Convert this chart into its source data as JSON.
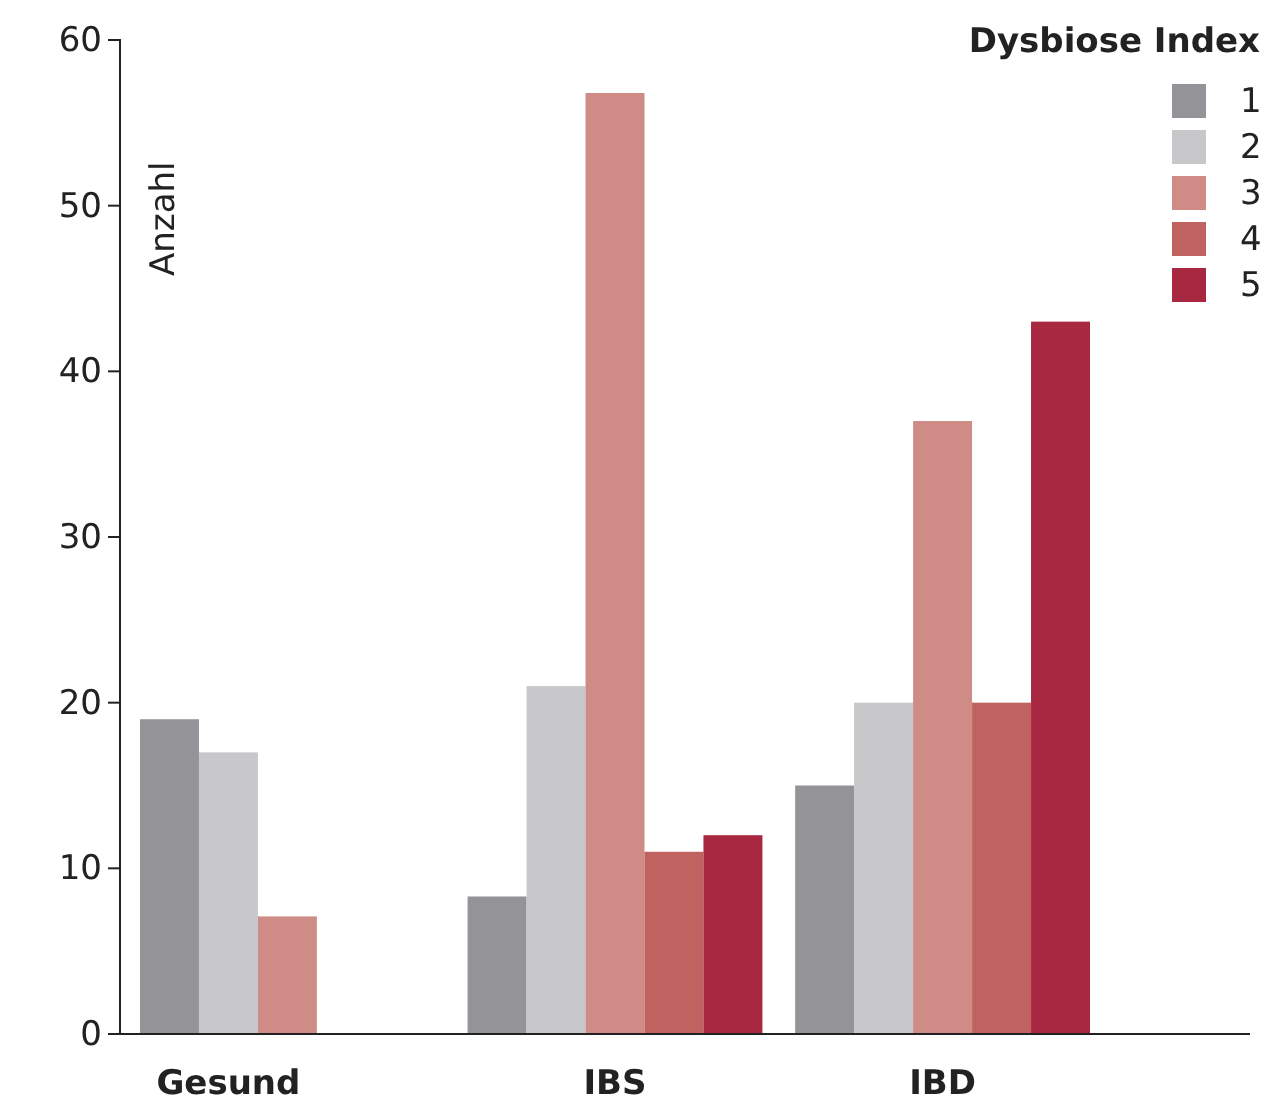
{
  "chart_data": {
    "type": "bar",
    "ylabel": "Anzahl",
    "legend_title": "Dysbiose Index",
    "categories": [
      "Gesund",
      "IBS",
      "IBD"
    ],
    "series": [
      {
        "name": "1",
        "color": "#939398",
        "values": [
          19,
          8.3,
          15
        ]
      },
      {
        "name": "2",
        "color": "#c8c8ca",
        "values": [
          17,
          21,
          20
        ]
      },
      {
        "name": "3",
        "color": "#cf8b86",
        "values": [
          7.1,
          56.8,
          37
        ]
      },
      {
        "name": "4",
        "color": "#c0625f",
        "values": [
          null,
          11,
          20
        ]
      },
      {
        "name": "5",
        "color": "#a82841",
        "values": [
          null,
          12,
          43
        ]
      }
    ],
    "ylim": [
      0,
      60
    ],
    "yticks": [
      0,
      10,
      20,
      30,
      40,
      50,
      60
    ],
    "grid": false,
    "legend": "top right"
  }
}
